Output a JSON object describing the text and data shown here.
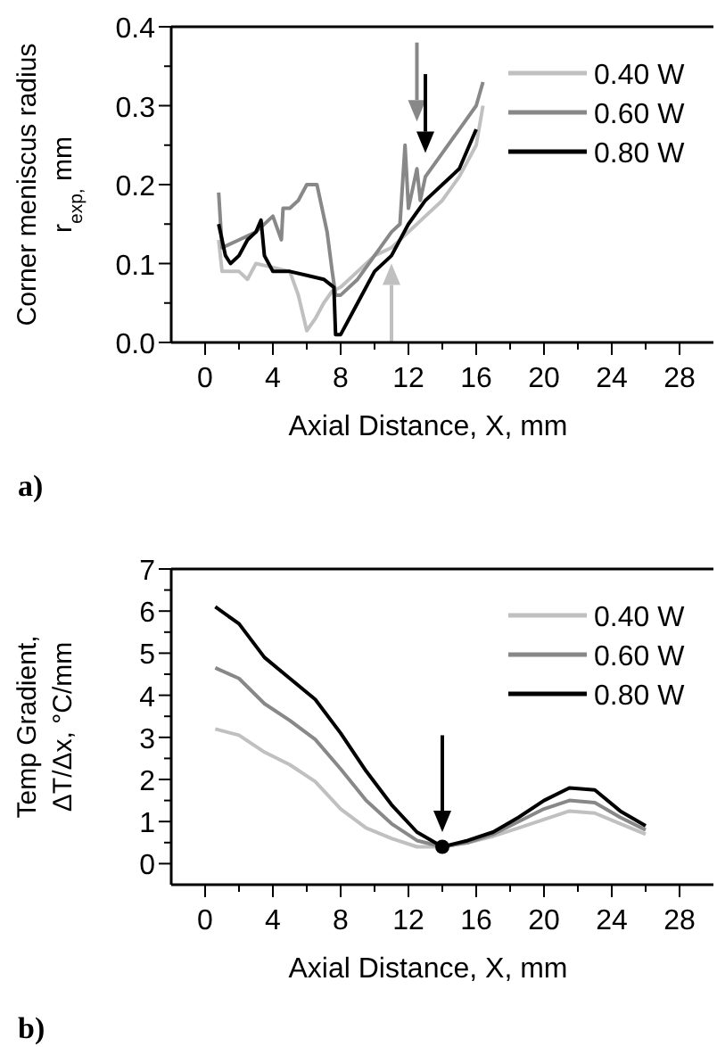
{
  "chart_data": [
    {
      "type": "line",
      "ylabel": "Corner meniscus radius\nr$_{exp,}$ mm",
      "xlabel": "Axial Distance, X, mm",
      "annotations": [
        "a)"
      ],
      "legend": "top right",
      "grid": false,
      "xlim": [
        -2,
        30
      ],
      "xticks": [
        0,
        {
          "value": 2,
          "label": null
        },
        4,
        {
          "value": 6,
          "label": null
        },
        8,
        {
          "value": 10,
          "label": null
        },
        12,
        {
          "value": 14,
          "label": null
        },
        16,
        {
          "value": 18,
          "label": null
        },
        20,
        {
          "value": 22,
          "label": null
        },
        24,
        {
          "value": 26,
          "label": null
        },
        28
      ],
      "ylim": [
        0,
        0.4
      ],
      "yticks": [
        {
          "value": 0,
          "label": "0.0"
        },
        {
          "value": 0.05,
          "label": null
        },
        0.1,
        {
          "value": 0.15,
          "label": null
        },
        0.2,
        {
          "value": 0.25,
          "label": null
        },
        0.3,
        {
          "value": 0.35,
          "label": null
        },
        0.4
      ],
      "series": [
        {
          "name": "0.40 W",
          "color": "#c0c0c0",
          "x": [
            0.8,
            1,
            2,
            2.5,
            3,
            4,
            5,
            5.5,
            6,
            6.5,
            7,
            7.5,
            8,
            9,
            10,
            11,
            12,
            13,
            14,
            15,
            16,
            16.4
          ],
          "values": [
            0.13,
            0.09,
            0.09,
            0.08,
            0.1,
            0.095,
            0.09,
            0.06,
            0.015,
            0.03,
            0.05,
            0.065,
            0.07,
            0.09,
            0.11,
            0.12,
            0.14,
            0.16,
            0.18,
            0.21,
            0.25,
            0.3
          ]
        },
        {
          "name": "0.60 W",
          "color": "#888888",
          "x": [
            0.8,
            1,
            2,
            3,
            4,
            4.5,
            4.6,
            5,
            5.5,
            6,
            6.6,
            6.8,
            7.2,
            7.5,
            7.7,
            8,
            9,
            10,
            11,
            11.5,
            11.8,
            12,
            12.5,
            12.7,
            13,
            14,
            15,
            16,
            16.4
          ],
          "values": [
            0.19,
            0.12,
            0.13,
            0.14,
            0.16,
            0.13,
            0.17,
            0.17,
            0.18,
            0.2,
            0.2,
            0.18,
            0.14,
            0.09,
            0.06,
            0.06,
            0.08,
            0.11,
            0.14,
            0.15,
            0.25,
            0.17,
            0.22,
            0.18,
            0.21,
            0.24,
            0.27,
            0.3,
            0.33
          ]
        },
        {
          "name": "0.80 W",
          "color": "#000000",
          "x": [
            0.8,
            1.2,
            1.5,
            2,
            2.5,
            3,
            3.3,
            3.5,
            4,
            5,
            6,
            7,
            7.6,
            7.7,
            8,
            9,
            10,
            11,
            12,
            13,
            13.5,
            14,
            15,
            16
          ],
          "values": [
            0.15,
            0.11,
            0.1,
            0.11,
            0.13,
            0.14,
            0.155,
            0.11,
            0.09,
            0.09,
            0.085,
            0.08,
            0.07,
            0.01,
            0.01,
            0.05,
            0.09,
            0.11,
            0.15,
            0.18,
            0.19,
            0.2,
            0.22,
            0.27
          ]
        }
      ]
    },
    {
      "type": "line",
      "ylabel": "Temp Gradient,\nΔT/Δx, °C/mm",
      "xlabel": "Axial Distance, X, mm",
      "annotations": [
        "b)"
      ],
      "legend": "top right",
      "grid": false,
      "xlim": [
        -2,
        30
      ],
      "xticks": [
        0,
        {
          "value": 2,
          "label": null
        },
        4,
        {
          "value": 6,
          "label": null
        },
        8,
        {
          "value": 10,
          "label": null
        },
        12,
        {
          "value": 14,
          "label": null
        },
        16,
        {
          "value": 18,
          "label": null
        },
        20,
        {
          "value": 22,
          "label": null
        },
        24,
        {
          "value": 26,
          "label": null
        },
        28
      ],
      "ylim": [
        -0.5,
        7
      ],
      "yticks": [
        0,
        {
          "value": 0.5,
          "label": null
        },
        1,
        {
          "value": 1.5,
          "label": null
        },
        2,
        {
          "value": 2.5,
          "label": null
        },
        3,
        {
          "value": 3.5,
          "label": null
        },
        4,
        {
          "value": 4.5,
          "label": null
        },
        5,
        {
          "value": 5.5,
          "label": null
        },
        6,
        {
          "value": 6.5,
          "label": null
        },
        7
      ],
      "series": [
        {
          "name": "0.40 W",
          "color": "#c0c0c0",
          "x": [
            0.6,
            2,
            3.5,
            5,
            6.5,
            8,
            9.5,
            11,
            12.5,
            14,
            15.5,
            17,
            18.5,
            20,
            21.5,
            23,
            24.5,
            26
          ],
          "values": [
            3.2,
            3.05,
            2.65,
            2.35,
            1.95,
            1.3,
            0.85,
            0.6,
            0.4,
            0.4,
            0.5,
            0.65,
            0.85,
            1.05,
            1.25,
            1.2,
            0.95,
            0.7
          ]
        },
        {
          "name": "0.60 W",
          "color": "#888888",
          "x": [
            0.6,
            2,
            3.5,
            5,
            6.5,
            8,
            9.5,
            11,
            12.5,
            14,
            15.5,
            17,
            18.5,
            20,
            21.5,
            23,
            24.5,
            26
          ],
          "values": [
            4.65,
            4.4,
            3.8,
            3.4,
            2.95,
            2.25,
            1.5,
            0.95,
            0.55,
            0.4,
            0.5,
            0.7,
            1.0,
            1.3,
            1.5,
            1.45,
            1.1,
            0.8
          ]
        },
        {
          "name": "0.80 W",
          "color": "#000000",
          "x": [
            0.6,
            2,
            3.5,
            5,
            6.5,
            8,
            9.5,
            11,
            12.5,
            14,
            15.5,
            17,
            18.5,
            20,
            21.5,
            23,
            24.5,
            26
          ],
          "values": [
            6.1,
            5.7,
            4.9,
            4.4,
            3.9,
            3.1,
            2.2,
            1.4,
            0.75,
            0.4,
            0.55,
            0.75,
            1.1,
            1.5,
            1.8,
            1.75,
            1.25,
            0.9
          ]
        },
        {
          "type": "scatter",
          "marker": "circle",
          "color": "#000000",
          "x": [
            14
          ],
          "values": [
            0.4
          ]
        }
      ]
    }
  ]
}
